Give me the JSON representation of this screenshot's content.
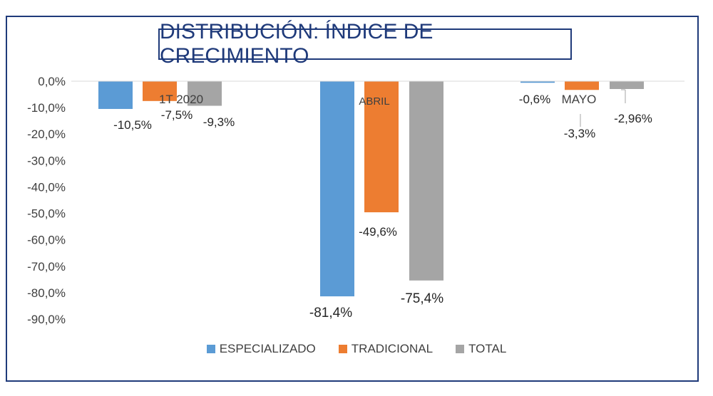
{
  "chart_data": {
    "type": "bar",
    "title": "DISTRIBUCIÓN:  ÍNDICE DE CRECIMIENTO",
    "categories": [
      "1T 2020",
      "ABRIL",
      "MAYO"
    ],
    "series": [
      {
        "name": "ESPECIALIZADO",
        "color": "#5B9BD5",
        "values": [
          -10.5,
          -81.4,
          -0.6
        ],
        "labels": [
          "-10,5%",
          "-81,4%",
          "-0,6%"
        ]
      },
      {
        "name": "TRADICIONAL",
        "color": "#ED7D31",
        "values": [
          -7.5,
          -49.6,
          -3.3
        ],
        "labels": [
          "-7,5%",
          "-49,6%",
          "-3,3%"
        ]
      },
      {
        "name": "TOTAL",
        "color": "#A5A5A5",
        "values": [
          -9.3,
          -75.4,
          -2.96
        ],
        "labels": [
          "-9,3%",
          "-75,4%",
          "-2,96%"
        ]
      }
    ],
    "yticks": [
      "0,0%",
      "-10,0%",
      "-20,0%",
      "-30,0%",
      "-40,0%",
      "-50,0%",
      "-60,0%",
      "-70,0%",
      "-80,0%",
      "-90,0%"
    ],
    "ylim": [
      -90,
      0
    ],
    "grid": false,
    "legend_position": "bottom"
  }
}
